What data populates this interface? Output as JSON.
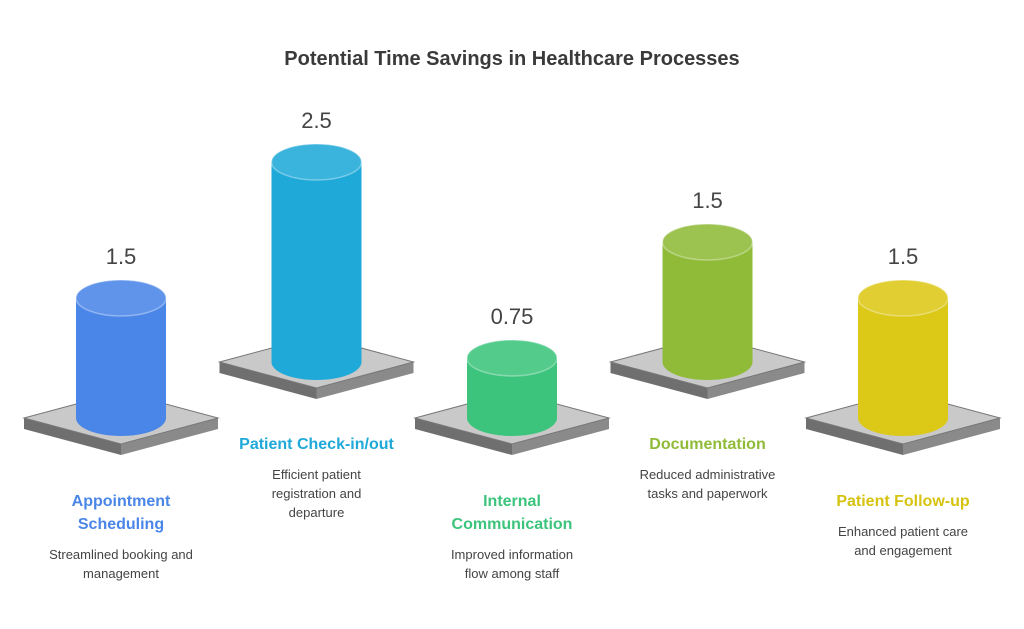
{
  "chart_data": {
    "type": "bar",
    "title": "Potential Time Savings in Healthcare Processes",
    "categories": [
      "Appointment Scheduling",
      "Patient Check-in/out",
      "Internal Communication",
      "Documentation",
      "Patient Follow-up"
    ],
    "values": [
      1.5,
      2.5,
      0.75,
      1.5,
      1.5
    ],
    "descriptions": [
      "Streamlined booking and management",
      "Efficient patient registration and departure",
      "Improved information flow among staff",
      "Reduced administrative tasks and paperwork",
      "Enhanced patient care and engagement"
    ],
    "colors": [
      "#4a86e8",
      "#1fa9d9",
      "#3cc47c",
      "#8fbb38",
      "#dcc817"
    ]
  }
}
